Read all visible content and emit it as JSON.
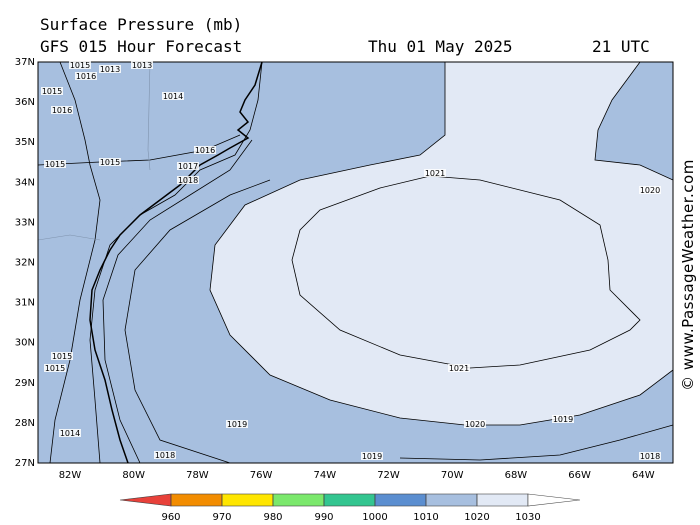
{
  "header": {
    "title": "Surface Pressure (mb)",
    "subtitle": "GFS 015 Hour Forecast",
    "date": "Thu 01 May 2025",
    "time": "21 UTC"
  },
  "lat_labels": [
    "37N",
    "36N",
    "35N",
    "34N",
    "33N",
    "32N",
    "31N",
    "30N",
    "29N",
    "28N",
    "27N"
  ],
  "lon_labels": [
    "82W",
    "80W",
    "78W",
    "76W",
    "74W",
    "72W",
    "70W",
    "68W",
    "66W",
    "64W"
  ],
  "contour_labels": [
    "1015",
    "1013",
    "1013",
    "1016",
    "1015",
    "1014",
    "1016",
    "1016",
    "1015",
    "1017",
    "1018",
    "1021",
    "1020",
    "1021",
    "1020",
    "1019",
    "1019",
    "1018",
    "1019",
    "1018",
    "1015",
    "1015",
    "1014",
    "1015"
  ],
  "colorbar": {
    "ticks": [
      960,
      970,
      980,
      990,
      1000,
      1010,
      1020,
      1030
    ],
    "colors": [
      "#e8413a",
      "#f28c00",
      "#ffe600",
      "#7be86c",
      "#33c590",
      "#5b8ed0",
      "#a7bfdf",
      "#e2e9f5",
      "#ffffff"
    ]
  },
  "watermark": "© www.PassageWeather.com"
}
